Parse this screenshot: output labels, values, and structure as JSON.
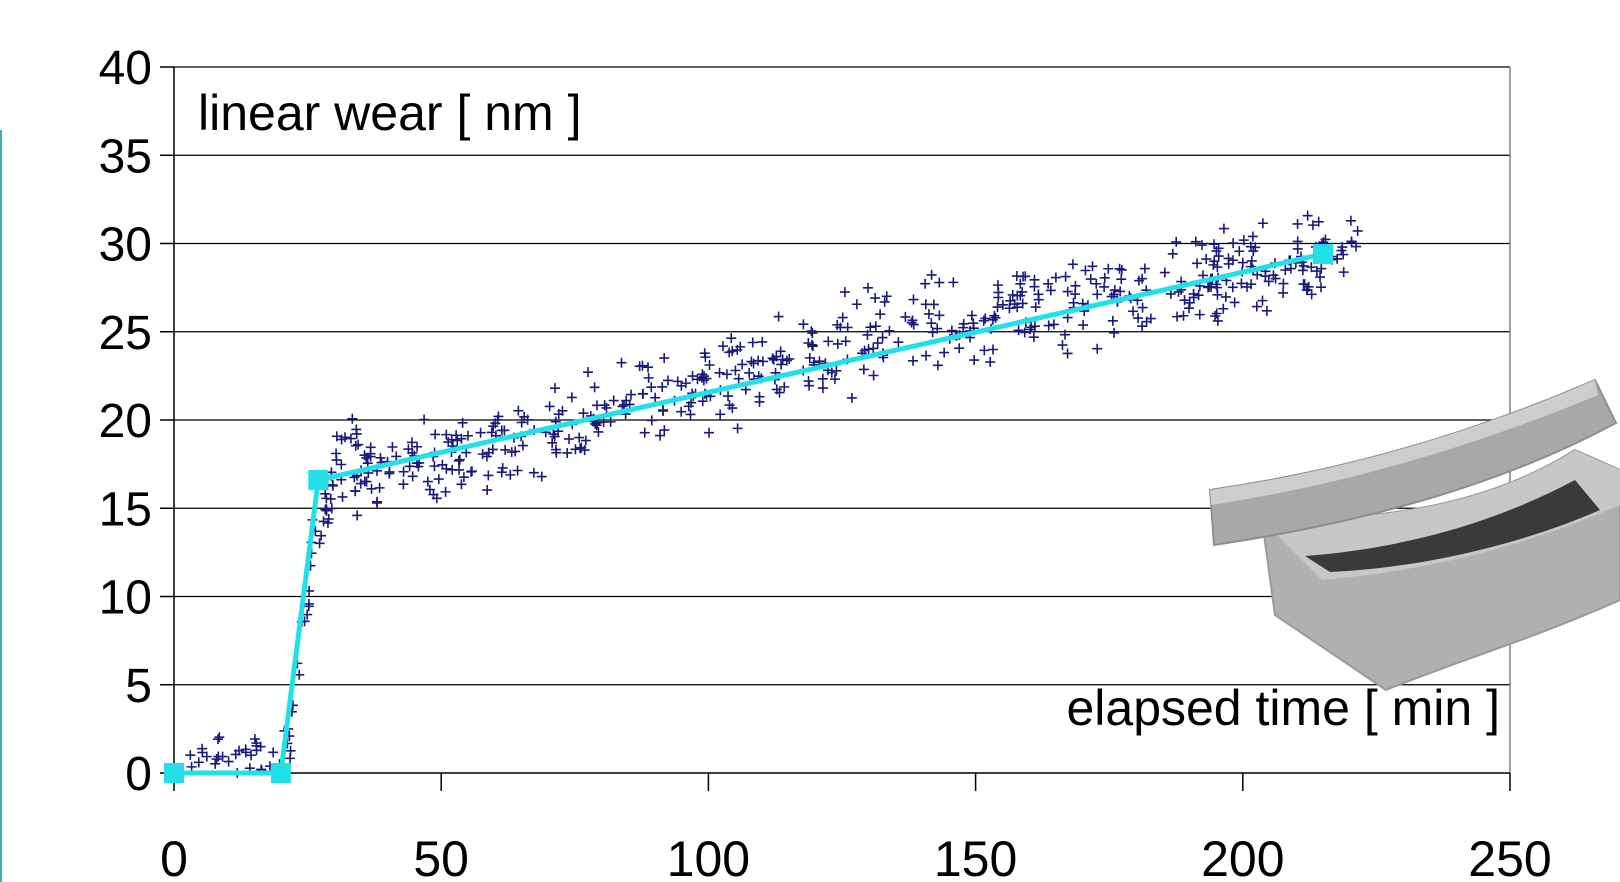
{
  "chart_data": {
    "type": "scatter",
    "xlabel": "elapsed time [ min ]",
    "ylabel": "linear wear [ nm ]",
    "xlim": [
      0,
      250
    ],
    "ylim": [
      0,
      40
    ],
    "x_ticks": [
      0,
      50,
      100,
      150,
      200,
      250
    ],
    "y_ticks": [
      0,
      5,
      10,
      15,
      20,
      25,
      30,
      35,
      40
    ],
    "grid": "horizontal",
    "colors": {
      "scatter": "#1a1a7a",
      "fit_line": "#22e0e8",
      "grid": "#000000"
    },
    "scatter_trend": [
      {
        "x": 3,
        "y": 0.8,
        "spread": 0.8
      },
      {
        "x": 20,
        "y": 1.2,
        "spread": 0.8
      },
      {
        "x": 22,
        "y": 2.0,
        "spread": 1.0
      },
      {
        "x": 25,
        "y": 10.0,
        "spread": 2.0
      },
      {
        "x": 27,
        "y": 14.0,
        "spread": 1.6
      },
      {
        "x": 30,
        "y": 17.0,
        "spread": 2.0
      },
      {
        "x": 50,
        "y": 17.6,
        "spread": 2.0
      },
      {
        "x": 75,
        "y": 19.8,
        "spread": 2.0
      },
      {
        "x": 100,
        "y": 22.3,
        "spread": 2.0
      },
      {
        "x": 125,
        "y": 24.2,
        "spread": 2.2
      },
      {
        "x": 150,
        "y": 25.7,
        "spread": 2.2
      },
      {
        "x": 175,
        "y": 27.0,
        "spread": 2.2
      },
      {
        "x": 200,
        "y": 28.2,
        "spread": 2.2
      },
      {
        "x": 222,
        "y": 29.5,
        "spread": 2.0
      }
    ],
    "scatter_count": 620,
    "fit_line": {
      "x": [
        0,
        20,
        27,
        215
      ],
      "y": [
        0,
        0,
        16.6,
        29.4
      ]
    }
  },
  "illustration": {
    "icon": "curved-block-contact-icon"
  }
}
